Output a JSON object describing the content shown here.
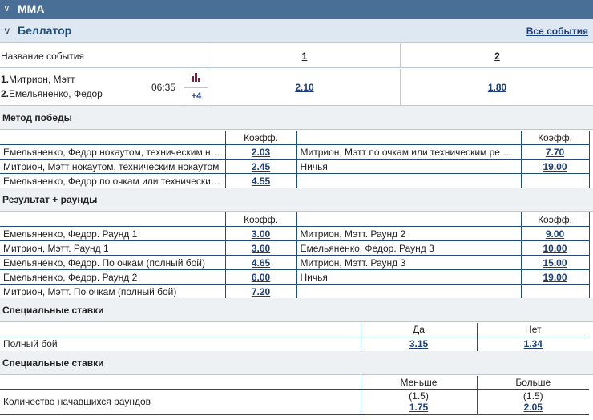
{
  "topbar": {
    "title": "MMA"
  },
  "league": {
    "title": "Беллатор",
    "all_events": "Все события"
  },
  "header": {
    "event_name": "Название события",
    "col1": "1",
    "col2": "2"
  },
  "event": {
    "p1_num": "1.",
    "p1_name": "Митрион, Мэтт",
    "p2_num": "2.",
    "p2_name": "Емельяненко, Федор",
    "time": "06:35",
    "more": "+4",
    "odd1": "2.10",
    "odd2": "1.80"
  },
  "method": {
    "title": "Метод победы",
    "coef": "Коэфф.",
    "rows": [
      {
        "l_name": "Емельяненко, Федор нокаутом, техническим нокаутом",
        "l_odd": "2.03",
        "r_name": "Митрион, Мэтт по очкам или техническим решением",
        "r_odd": "7.70"
      },
      {
        "l_name": "Митрион, Мэтт нокаутом, техническим нокаутом",
        "l_odd": "2.45",
        "r_name": "Ничья",
        "r_odd": "19.00"
      },
      {
        "l_name": "Емельяненко, Федор по очкам или техническим решением",
        "l_odd": "4.55",
        "r_name": "",
        "r_odd": ""
      }
    ]
  },
  "rounds": {
    "title": "Результат + раунды",
    "coef": "Коэфф.",
    "rows": [
      {
        "l_name": "Емельяненко, Федор. Раунд 1",
        "l_odd": "3.00",
        "r_name": "Митрион, Мэтт. Раунд 2",
        "r_odd": "9.00"
      },
      {
        "l_name": "Митрион, Мэтт. Раунд 1",
        "l_odd": "3.60",
        "r_name": "Емельяненко, Федор. Раунд 3",
        "r_odd": "10.00"
      },
      {
        "l_name": "Емельяненко, Федор. По очкам (полный бой)",
        "l_odd": "4.65",
        "r_name": "Митрион, Мэтт. Раунд 3",
        "r_odd": "15.00"
      },
      {
        "l_name": "Емельяненко, Федор. Раунд 2",
        "l_odd": "6.00",
        "r_name": "Ничья",
        "r_odd": "19.00"
      },
      {
        "l_name": "Митрион, Мэтт. По очкам (полный бой)",
        "l_odd": "7.20",
        "r_name": "",
        "r_odd": ""
      }
    ]
  },
  "special1": {
    "title": "Специальные ставки",
    "yes": "Да",
    "no": "Нет",
    "row_name": "Полный бой",
    "yes_odd": "3.15",
    "no_odd": "1.34"
  },
  "special2": {
    "title": "Специальные ставки",
    "less": "Меньше",
    "more": "Больше",
    "row_name": "Количество начавшихся раундов",
    "less_line": "(1.5)",
    "less_odd": "1.75",
    "more_line": "(1.5)",
    "more_odd": "2.05"
  }
}
